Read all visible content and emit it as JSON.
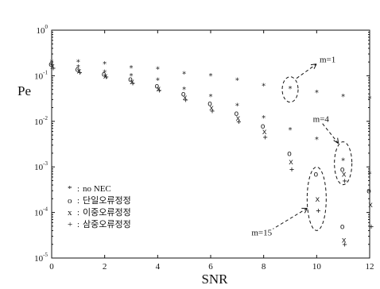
{
  "chart_data": {
    "type": "scatter",
    "xlabel": "SNR",
    "ylabel": "Pe",
    "xlim": [
      0,
      12
    ],
    "ylim_log10": [
      -5,
      0
    ],
    "y_scale": "log",
    "x_ticks": [
      "0",
      "2",
      "4",
      "6",
      "8",
      "10",
      "12"
    ],
    "y_ticks": [
      {
        "base": "10",
        "exp": "0",
        "value": 1
      },
      {
        "base": "10",
        "exp": "-1",
        "value": 0.1
      },
      {
        "base": "10",
        "exp": "-2",
        "value": 0.01
      },
      {
        "base": "10",
        "exp": "-3",
        "value": 0.001
      },
      {
        "base": "10",
        "exp": "-4",
        "value": 0.0001
      },
      {
        "base": "10",
        "exp": "-5",
        "value": 1e-05
      }
    ],
    "grid": false,
    "legend_position": "bottom-left",
    "series": [
      {
        "name": "no NEC",
        "marker": "*",
        "points": [
          [
            0,
            0.2
          ],
          [
            0,
            0.17
          ],
          [
            1,
            0.2
          ],
          [
            1,
            0.155
          ],
          [
            2,
            0.18
          ],
          [
            2,
            0.12
          ],
          [
            3,
            0.15
          ],
          [
            3,
            0.1
          ],
          [
            4,
            0.14
          ],
          [
            4,
            0.08
          ],
          [
            5,
            0.11
          ],
          [
            5,
            0.05
          ],
          [
            6,
            0.1
          ],
          [
            6,
            0.035
          ],
          [
            7,
            0.08
          ],
          [
            7,
            0.022
          ],
          [
            8,
            0.06
          ],
          [
            8,
            0.012
          ],
          [
            9,
            0.052
          ],
          [
            9,
            0.0065
          ],
          [
            10,
            0.043
          ],
          [
            10,
            0.004
          ],
          [
            11,
            0.035
          ],
          [
            11,
            0.0014
          ],
          [
            12,
            0.032
          ],
          [
            12,
            0.0007
          ]
        ]
      },
      {
        "name": "단일오류정정",
        "marker": "o",
        "points": [
          [
            0,
            0.18
          ],
          [
            1,
            0.14
          ],
          [
            2,
            0.11
          ],
          [
            3,
            0.085
          ],
          [
            4,
            0.06
          ],
          [
            5,
            0.04
          ],
          [
            6,
            0.025
          ],
          [
            7,
            0.015
          ],
          [
            8,
            0.008
          ],
          [
            9,
            0.002
          ],
          [
            10,
            0.0007
          ],
          [
            11,
            0.0009
          ],
          [
            11,
            5e-05
          ],
          [
            12,
            0.0003
          ]
        ]
      },
      {
        "name": "이중오류정정",
        "marker": "x",
        "points": [
          [
            0,
            0.165
          ],
          [
            1,
            0.13
          ],
          [
            2,
            0.1
          ],
          [
            3,
            0.075
          ],
          [
            4,
            0.052
          ],
          [
            5,
            0.034
          ],
          [
            6,
            0.02
          ],
          [
            7,
            0.012
          ],
          [
            8,
            0.006
          ],
          [
            9,
            0.0013
          ],
          [
            10,
            0.0002
          ],
          [
            11,
            0.0007
          ],
          [
            11,
            2.5e-05
          ],
          [
            12,
            0.00015
          ]
        ]
      },
      {
        "name": "삼중오류정정",
        "marker": "+",
        "points": [
          [
            0,
            0.15
          ],
          [
            1,
            0.12
          ],
          [
            2,
            0.095
          ],
          [
            3,
            0.07
          ],
          [
            4,
            0.048
          ],
          [
            5,
            0.03
          ],
          [
            6,
            0.017
          ],
          [
            7,
            0.01
          ],
          [
            8,
            0.0045
          ],
          [
            9,
            0.0009
          ],
          [
            10,
            0.00011
          ],
          [
            11,
            0.0005
          ],
          [
            11,
            2e-05
          ],
          [
            12,
            5e-05
          ]
        ]
      }
    ],
    "annotations": [
      {
        "text": "m=1",
        "target_x": 9,
        "target_y": 0.05
      },
      {
        "text": "m=4",
        "target_x": 11,
        "target_y": 0.0012
      },
      {
        "text": "m=15",
        "target_x": 10,
        "target_y": 0.0002
      }
    ]
  }
}
